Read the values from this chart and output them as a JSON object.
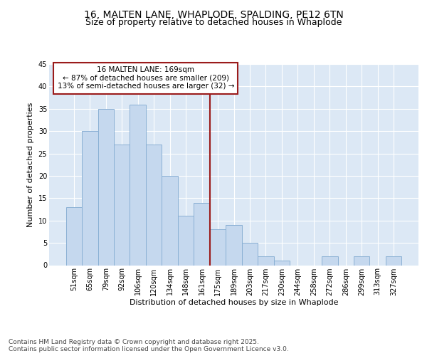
{
  "title1": "16, MALTEN LANE, WHAPLODE, SPALDING, PE12 6TN",
  "title2": "Size of property relative to detached houses in Whaplode",
  "xlabel": "Distribution of detached houses by size in Whaplode",
  "ylabel": "Number of detached properties",
  "categories": [
    "51sqm",
    "65sqm",
    "79sqm",
    "92sqm",
    "106sqm",
    "120sqm",
    "134sqm",
    "148sqm",
    "161sqm",
    "175sqm",
    "189sqm",
    "203sqm",
    "217sqm",
    "230sqm",
    "244sqm",
    "258sqm",
    "272sqm",
    "286sqm",
    "299sqm",
    "313sqm",
    "327sqm"
  ],
  "values": [
    13,
    30,
    35,
    27,
    36,
    27,
    20,
    11,
    14,
    8,
    9,
    5,
    2,
    1,
    0,
    0,
    2,
    0,
    2,
    0,
    2
  ],
  "bar_color": "#c5d8ee",
  "bar_edge_color": "#8ab0d4",
  "vline_x": 8.5,
  "vline_color": "#9b1b1b",
  "annotation_text": "16 MALTEN LANE: 169sqm\n← 87% of detached houses are smaller (209)\n13% of semi-detached houses are larger (32) →",
  "annotation_box_color": "white",
  "annotation_box_edge": "#9b1b1b",
  "ylim": [
    0,
    45
  ],
  "yticks": [
    0,
    5,
    10,
    15,
    20,
    25,
    30,
    35,
    40,
    45
  ],
  "background_color": "#dce8f5",
  "grid_color": "white",
  "footer": "Contains HM Land Registry data © Crown copyright and database right 2025.\nContains public sector information licensed under the Open Government Licence v3.0.",
  "title_fontsize": 10,
  "subtitle_fontsize": 9,
  "label_fontsize": 8,
  "tick_fontsize": 7,
  "annot_fontsize": 7.5,
  "footer_fontsize": 6.5
}
